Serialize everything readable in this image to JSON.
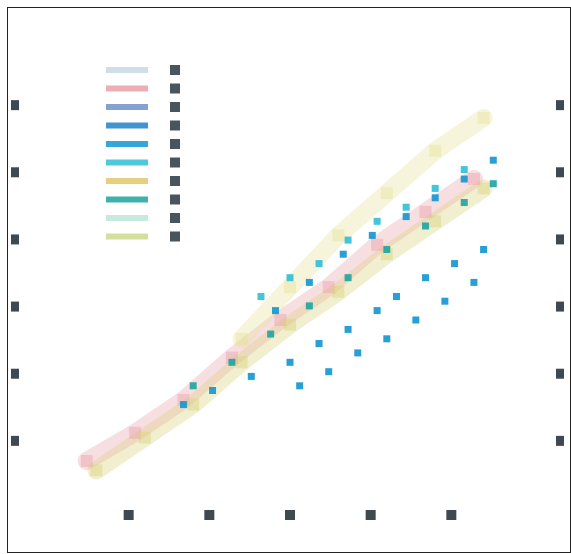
{
  "chart_data": {
    "type": "scatter",
    "title": "",
    "xlabel": "",
    "ylabel": "",
    "x_tick_labels": [
      "",
      "",
      "",
      "",
      ""
    ],
    "y_tick_labels": [
      "",
      "",
      "",
      "",
      "",
      ""
    ],
    "xlim": [
      0,
      100
    ],
    "ylim": [
      0,
      100
    ],
    "grid": false,
    "legend_position": "top-left",
    "series": [
      {
        "color": "#e8a0a8",
        "style": "band",
        "points": [
          [
            8,
            10
          ],
          [
            18,
            16
          ],
          [
            28,
            23
          ],
          [
            38,
            32
          ],
          [
            48,
            40
          ],
          [
            58,
            47
          ],
          [
            68,
            56
          ],
          [
            78,
            63
          ],
          [
            88,
            70
          ]
        ]
      },
      {
        "color": "#d9d27a",
        "style": "band",
        "points": [
          [
            10,
            8
          ],
          [
            20,
            15
          ],
          [
            30,
            22
          ],
          [
            40,
            31
          ],
          [
            50,
            39
          ],
          [
            60,
            46
          ],
          [
            70,
            54
          ],
          [
            80,
            61
          ],
          [
            90,
            68
          ]
        ]
      },
      {
        "color": "#e6e29a",
        "style": "band",
        "points": [
          [
            40,
            36
          ],
          [
            50,
            47
          ],
          [
            60,
            58
          ],
          [
            70,
            67
          ],
          [
            80,
            76
          ],
          [
            90,
            83
          ]
        ]
      },
      {
        "color": "#1296d0",
        "style": "points",
        "points": [
          [
            28,
            22
          ],
          [
            34,
            25
          ],
          [
            42,
            28
          ],
          [
            50,
            31
          ],
          [
            56,
            35
          ],
          [
            62,
            38
          ],
          [
            68,
            42
          ],
          [
            72,
            45
          ],
          [
            78,
            49
          ],
          [
            84,
            52
          ],
          [
            90,
            55
          ],
          [
            47,
            42
          ],
          [
            54,
            48
          ],
          [
            61,
            54
          ],
          [
            67,
            58
          ],
          [
            74,
            62
          ],
          [
            80,
            66
          ],
          [
            86,
            70
          ],
          [
            92,
            74
          ],
          [
            52,
            26
          ],
          [
            58,
            29
          ],
          [
            64,
            33
          ],
          [
            70,
            36
          ],
          [
            76,
            40
          ],
          [
            82,
            44
          ],
          [
            88,
            48
          ]
        ]
      },
      {
        "color": "#1da39e",
        "style": "points",
        "points": [
          [
            30,
            26
          ],
          [
            38,
            31
          ],
          [
            46,
            37
          ],
          [
            54,
            43
          ],
          [
            62,
            49
          ],
          [
            70,
            55
          ],
          [
            78,
            60
          ],
          [
            86,
            65
          ],
          [
            92,
            69
          ]
        ]
      },
      {
        "color": "#2fbfd6",
        "style": "points",
        "points": [
          [
            44,
            45
          ],
          [
            50,
            49
          ],
          [
            56,
            52
          ],
          [
            62,
            57
          ],
          [
            68,
            61
          ],
          [
            74,
            64
          ],
          [
            80,
            68
          ],
          [
            86,
            72
          ]
        ]
      }
    ],
    "legend": [
      {
        "color": "#c8d8e0"
      },
      {
        "color": "#e8a0a8"
      },
      {
        "color": "#6f90c8"
      },
      {
        "color": "#1f82c8"
      },
      {
        "color": "#1296d0"
      },
      {
        "color": "#2fbfd6"
      },
      {
        "color": "#e0c76a"
      },
      {
        "color": "#1da39e"
      },
      {
        "color": "#bfe4d8"
      },
      {
        "color": "#ccd98a"
      }
    ]
  }
}
